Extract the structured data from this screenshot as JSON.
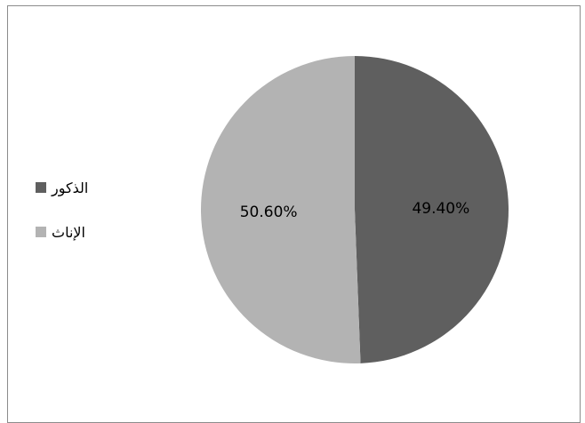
{
  "chart_data": {
    "type": "pie",
    "slices": [
      {
        "label": "الذكور",
        "value": 49.4,
        "value_label": "49.40%",
        "color": "#5f5f5f"
      },
      {
        "label": "الإناث",
        "value": 50.6,
        "value_label": "50.60%",
        "color": "#b3b3b3"
      }
    ],
    "legend_position": "left",
    "start_angle": "12 o'clock",
    "direction": "clockwise"
  }
}
